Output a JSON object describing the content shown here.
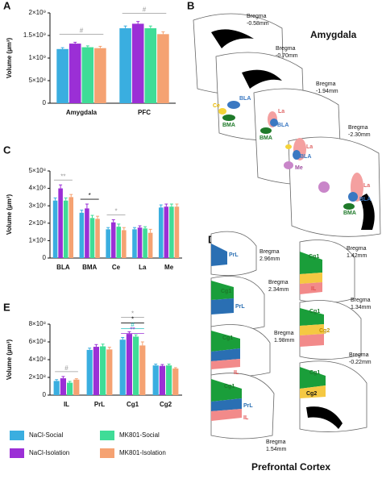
{
  "panel_letters": [
    "A",
    "B",
    "C",
    "D",
    "E"
  ],
  "chart_data": [
    {
      "type": "bar",
      "y_label": "Volume (µm³)",
      "categories": [
        "Amygdala",
        "PFC"
      ],
      "ylim": [
        0,
        2000000000
      ],
      "yticks": [
        0,
        {
          "value": 500000000,
          "label": "5×10⁸"
        },
        {
          "value": 1000000000,
          "label": "1×10⁹"
        },
        {
          "value": 1500000000,
          "label": "1.5×10⁹"
        },
        {
          "value": 2000000000,
          "label": "2×10⁹"
        }
      ],
      "series": [
        {
          "name": "NaCl-Social",
          "color": "#3aaee0",
          "values": [
            1200000000,
            1660000000
          ],
          "errors": [
            30000000,
            50000000
          ]
        },
        {
          "name": "NaCl-Isolation",
          "color": "#9b2fd6",
          "values": [
            1320000000,
            1760000000
          ],
          "errors": [
            30000000,
            50000000
          ]
        },
        {
          "name": "MK801-Social",
          "color": "#3fdc97",
          "values": [
            1240000000,
            1660000000
          ],
          "errors": [
            30000000,
            50000000
          ]
        },
        {
          "name": "MK801-Isolation",
          "color": "#f5a272",
          "values": [
            1220000000,
            1530000000
          ],
          "errors": [
            40000000,
            50000000
          ]
        }
      ],
      "annotations": [
        "#",
        "#"
      ]
    },
    {
      "type": "bar",
      "y_label": "Volume (µm³)",
      "categories": [
        "BLA",
        "BMA",
        "Ce",
        "La",
        "Me"
      ],
      "ylim": [
        0,
        500000000
      ],
      "yticks": [
        0,
        {
          "value": 100000000,
          "label": "1×10⁸"
        },
        {
          "value": 200000000,
          "label": "2×10⁸"
        },
        {
          "value": 300000000,
          "label": "3×10⁸"
        },
        {
          "value": 400000000,
          "label": "4×10⁸"
        },
        {
          "value": 500000000,
          "label": "5×10⁸"
        }
      ],
      "series": [
        {
          "name": "NaCl-Social",
          "color": "#3aaee0",
          "values": [
            330000000,
            260000000,
            165000000,
            165000000,
            290000000
          ],
          "errors": [
            15000000,
            15000000,
            10000000,
            10000000,
            15000000
          ]
        },
        {
          "name": "NaCl-Isolation",
          "color": "#9b2fd6",
          "values": [
            400000000,
            285000000,
            205000000,
            175000000,
            295000000
          ],
          "errors": [
            20000000,
            25000000,
            15000000,
            10000000,
            15000000
          ]
        },
        {
          "name": "MK801-Social",
          "color": "#3fdc97",
          "values": [
            330000000,
            230000000,
            180000000,
            170000000,
            295000000
          ],
          "errors": [
            15000000,
            15000000,
            15000000,
            10000000,
            15000000
          ]
        },
        {
          "name": "MK801-Isolation",
          "color": "#f5a272",
          "values": [
            350000000,
            225000000,
            160000000,
            145000000,
            295000000
          ],
          "errors": [
            15000000,
            15000000,
            15000000,
            20000000,
            15000000
          ]
        }
      ],
      "annotations": [
        "**",
        "*",
        "*"
      ]
    },
    {
      "type": "bar",
      "y_label": "Volume (µm³)",
      "categories": [
        "IL",
        "PrL",
        "Cg1",
        "Cg2"
      ],
      "ylim": [
        0,
        800000000
      ],
      "yticks": [
        0,
        {
          "value": 200000000,
          "label": "2×10⁸"
        },
        {
          "value": 400000000,
          "label": "4×10⁸"
        },
        {
          "value": 600000000,
          "label": "6×10⁸"
        },
        {
          "value": 800000000,
          "label": "8×10⁸"
        }
      ],
      "series": [
        {
          "name": "NaCl-Social",
          "color": "#3aaee0",
          "values": [
            160000000,
            510000000,
            625000000,
            335000000
          ],
          "errors": [
            15000000,
            20000000,
            25000000,
            15000000
          ]
        },
        {
          "name": "NaCl-Isolation",
          "color": "#9b2fd6",
          "values": [
            190000000,
            545000000,
            690000000,
            330000000
          ],
          "errors": [
            20000000,
            25000000,
            25000000,
            15000000
          ]
        },
        {
          "name": "MK801-Social",
          "color": "#3fdc97",
          "values": [
            140000000,
            550000000,
            660000000,
            335000000
          ],
          "errors": [
            15000000,
            25000000,
            20000000,
            15000000
          ]
        },
        {
          "name": "MK801-Isolation",
          "color": "#f5a272",
          "values": [
            175000000,
            515000000,
            560000000,
            300000000
          ],
          "errors": [
            10000000,
            25000000,
            40000000,
            10000000
          ]
        }
      ],
      "annotations": [
        "#",
        "*",
        "*",
        "#",
        "**"
      ]
    }
  ],
  "amygdala_diagram": {
    "title": "Amygdala",
    "sections": [
      [
        "Bregma",
        "-0.58mm"
      ],
      [
        "Bregma",
        "-0.70mm"
      ],
      [
        "Bregma",
        "-1.94mm"
      ],
      [
        "Bregma",
        "-2.30mm"
      ]
    ],
    "regions": [
      "BLA",
      "Ce",
      "BMA",
      "La",
      "Me"
    ]
  },
  "pfc_diagram": {
    "title": "Prefrontal Cortex",
    "sections": [
      [
        "Bregma",
        "2.96mm"
      ],
      [
        "Bregma",
        "2.34mm"
      ],
      [
        "Bregma",
        "1.98mm"
      ],
      [
        "Bregma",
        "1.54mm"
      ],
      [
        "Bregma",
        "1.42mm"
      ],
      [
        "Bregma",
        "1.34mm"
      ],
      [
        "Bregma",
        "-0.22mm"
      ]
    ],
    "regions": [
      "PrL",
      "Cg1",
      "IL",
      "Cg2"
    ]
  }
}
